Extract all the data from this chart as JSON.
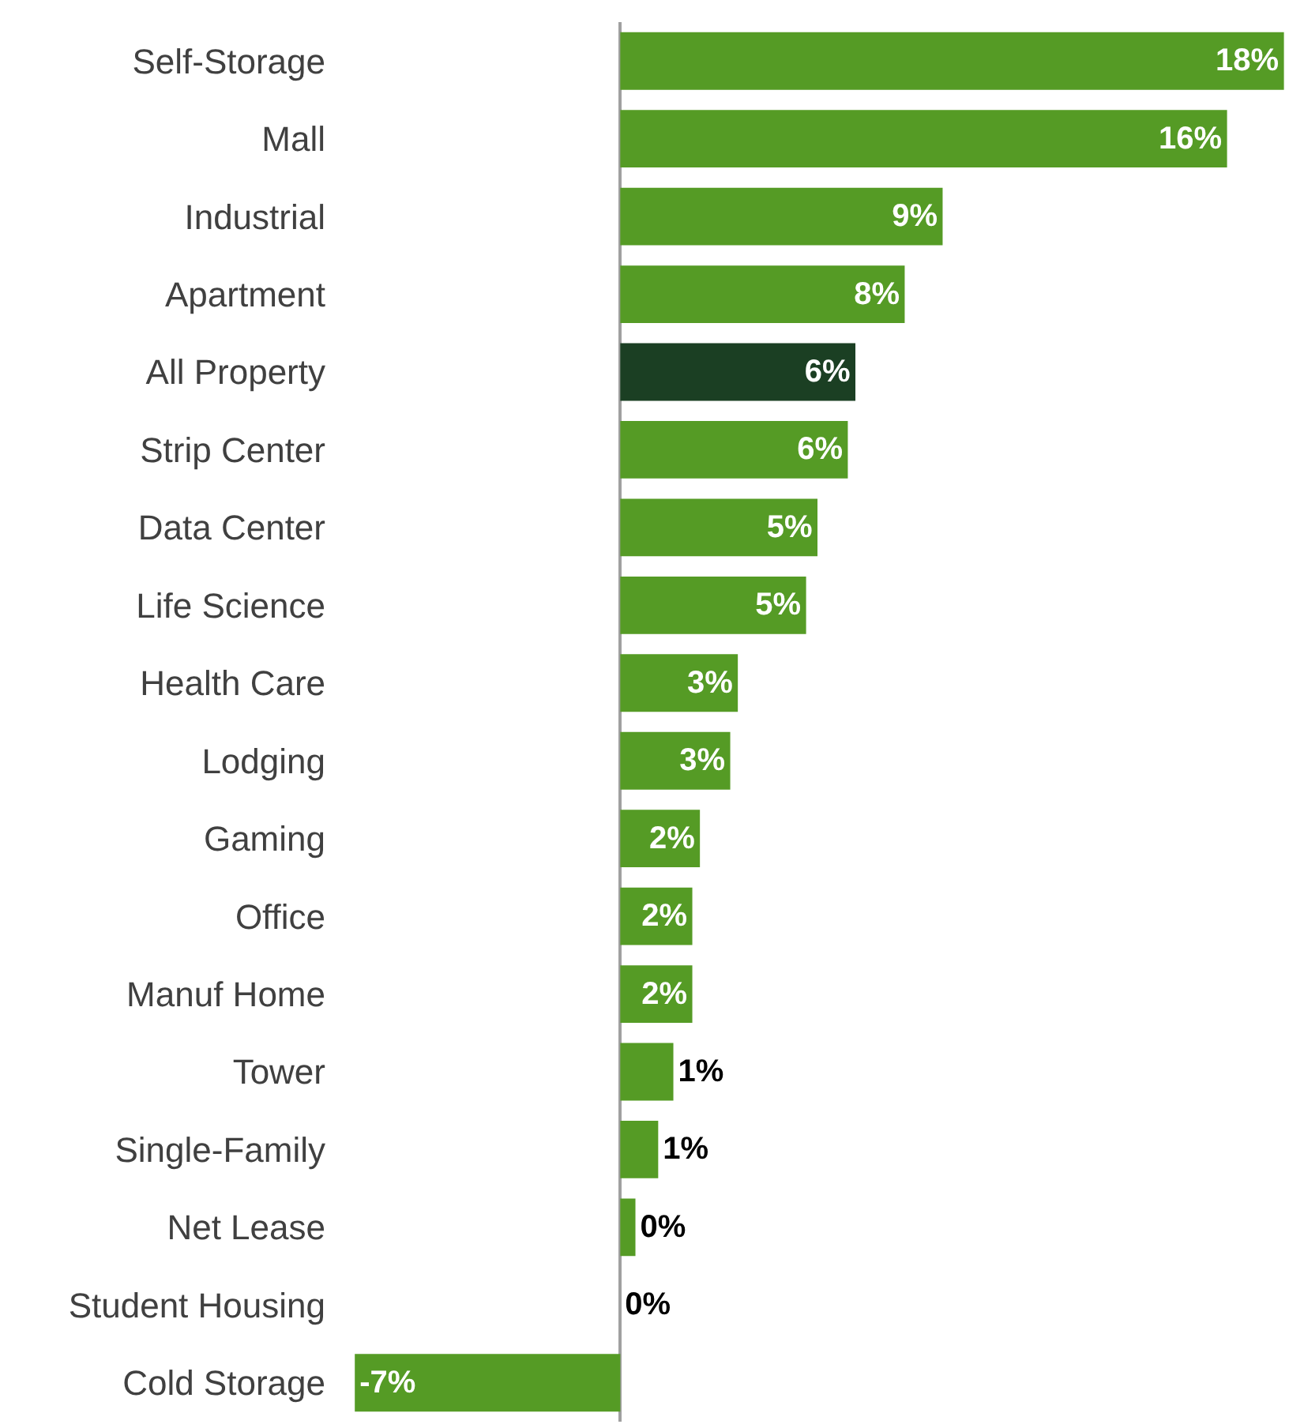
{
  "chart_data": {
    "type": "bar",
    "orientation": "horizontal",
    "categories": [
      "Self-Storage",
      "Mall",
      "Industrial",
      "Apartment",
      "All Property",
      "Strip Center",
      "Data Center",
      "Life Science",
      "Health Care",
      "Lodging",
      "Gaming",
      "Office",
      "Manuf Home",
      "Tower",
      "Single-Family",
      "Net Lease",
      "Student Housing",
      "Cold Storage"
    ],
    "values": [
      17.5,
      16.0,
      8.5,
      7.5,
      6.2,
      6.0,
      5.2,
      4.9,
      3.1,
      2.9,
      2.1,
      1.9,
      1.9,
      1.4,
      1.0,
      0.4,
      0.0,
      -7.0
    ],
    "value_labels": [
      "18%",
      "16%",
      "9%",
      "8%",
      "6%",
      "6%",
      "5%",
      "5%",
      "3%",
      "3%",
      "2%",
      "2%",
      "2%",
      "1%",
      "1%",
      "0%",
      "0%",
      "-7%"
    ],
    "colors": [
      "#559b25",
      "#559b25",
      "#559b25",
      "#559b25",
      "#1b3f23",
      "#559b25",
      "#559b25",
      "#559b25",
      "#559b25",
      "#559b25",
      "#559b25",
      "#559b25",
      "#559b25",
      "#559b25",
      "#559b25",
      "#559b25",
      "#559b25",
      "#559b25"
    ]
  }
}
